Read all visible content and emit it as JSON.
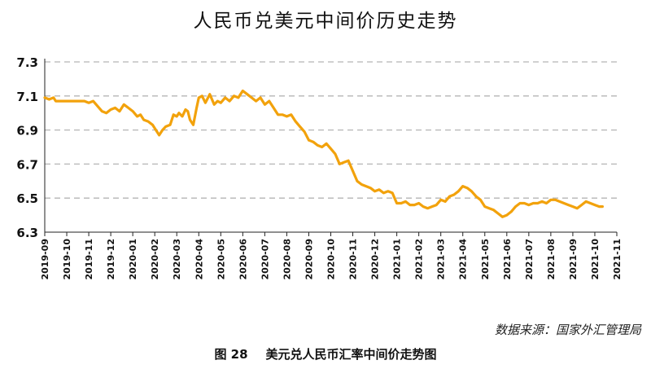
{
  "chart_data": {
    "type": "line",
    "title": "人民币兑美元中间价历史走势",
    "xlabel": "",
    "ylabel": "",
    "ylim": [
      6.3,
      7.3
    ],
    "yticks": [
      "6.3",
      "6.5",
      "6.7",
      "6.9",
      "7.1",
      "7.3"
    ],
    "grid": "horizontal dashed",
    "categories": [
      "2019-09",
      "2019-10",
      "2019-11",
      "2019-12",
      "2020-01",
      "2020-02",
      "2020-03",
      "2020-04",
      "2020-05",
      "2020-06",
      "2020-07",
      "2020-08",
      "2020-09",
      "2020-10",
      "2020-11",
      "2020-12",
      "2021-01",
      "2021-02",
      "2021-03",
      "2021-04",
      "2021-05",
      "2021-06",
      "2021-07",
      "2021-08",
      "2021-09",
      "2021-10",
      "2021-11"
    ],
    "series": [
      {
        "color": "#F2A20C",
        "x": [
          0.0,
          0.2,
          0.4,
          0.5,
          0.8,
          1.0,
          1.3,
          1.6,
          1.8,
          2.0,
          2.2,
          2.4,
          2.6,
          2.8,
          3.0,
          3.2,
          3.4,
          3.6,
          3.8,
          4.0,
          4.2,
          4.35,
          4.5,
          4.7,
          4.9,
          5.0,
          5.2,
          5.35,
          5.5,
          5.7,
          5.85,
          6.0,
          6.1,
          6.25,
          6.4,
          6.5,
          6.6,
          6.75,
          6.9,
          7.0,
          7.15,
          7.3,
          7.5,
          7.7,
          7.85,
          8.0,
          8.2,
          8.4,
          8.6,
          8.8,
          9.0,
          9.2,
          9.4,
          9.6,
          9.8,
          10.0,
          10.2,
          10.4,
          10.6,
          10.8,
          11.0,
          11.2,
          11.4,
          11.6,
          11.8,
          12.0,
          12.2,
          12.4,
          12.6,
          12.8,
          13.0,
          13.2,
          13.4,
          13.6,
          13.8,
          14.0,
          14.2,
          14.4,
          14.6,
          14.8,
          15.0,
          15.2,
          15.4,
          15.6,
          15.8,
          16.0,
          16.2,
          16.4,
          16.6,
          16.8,
          17.0,
          17.2,
          17.4,
          17.6,
          17.8,
          18.0,
          18.2,
          18.4,
          18.6,
          18.8,
          19.0,
          19.2,
          19.4,
          19.6,
          19.8,
          20.0,
          20.2,
          20.4,
          20.6,
          20.8,
          21.0,
          21.2,
          21.4,
          21.6,
          21.8,
          22.0,
          22.2,
          22.4,
          22.6,
          22.8,
          23.0,
          23.2,
          23.4,
          23.6,
          23.8,
          24.0,
          24.2,
          24.4,
          24.6,
          24.8,
          25.0,
          25.2,
          25.35
        ],
        "values": [
          7.09,
          7.08,
          7.09,
          7.07,
          7.07,
          7.07,
          7.07,
          7.07,
          7.07,
          7.06,
          7.07,
          7.04,
          7.01,
          7.0,
          7.02,
          7.03,
          7.01,
          7.05,
          7.03,
          7.01,
          6.98,
          6.99,
          6.96,
          6.95,
          6.93,
          6.91,
          6.87,
          6.9,
          6.92,
          6.93,
          6.99,
          6.98,
          7.0,
          6.98,
          7.02,
          7.01,
          6.96,
          6.93,
          7.03,
          7.09,
          7.1,
          7.06,
          7.11,
          7.05,
          7.07,
          7.06,
          7.09,
          7.07,
          7.1,
          7.09,
          7.13,
          7.11,
          7.09,
          7.07,
          7.09,
          7.05,
          7.07,
          7.03,
          6.99,
          6.99,
          6.98,
          6.99,
          6.95,
          6.92,
          6.89,
          6.84,
          6.83,
          6.81,
          6.8,
          6.82,
          6.79,
          6.76,
          6.7,
          6.71,
          6.72,
          6.66,
          6.6,
          6.58,
          6.57,
          6.56,
          6.54,
          6.55,
          6.53,
          6.54,
          6.53,
          6.47,
          6.47,
          6.48,
          6.46,
          6.46,
          6.47,
          6.45,
          6.44,
          6.45,
          6.46,
          6.49,
          6.48,
          6.51,
          6.52,
          6.54,
          6.57,
          6.56,
          6.54,
          6.51,
          6.49,
          6.45,
          6.44,
          6.43,
          6.41,
          6.39,
          6.4,
          6.42,
          6.45,
          6.47,
          6.47,
          6.46,
          6.47,
          6.47,
          6.48,
          6.47,
          6.49,
          6.49,
          6.48,
          6.47,
          6.46,
          6.45,
          6.44,
          6.46,
          6.48,
          6.47,
          6.46,
          6.45,
          6.45
        ]
      }
    ]
  },
  "source": "数据来源：国家外汇管理局",
  "caption": {
    "figure_label": "图 28",
    "text": "美元兑人民币汇率中间价走势图"
  }
}
